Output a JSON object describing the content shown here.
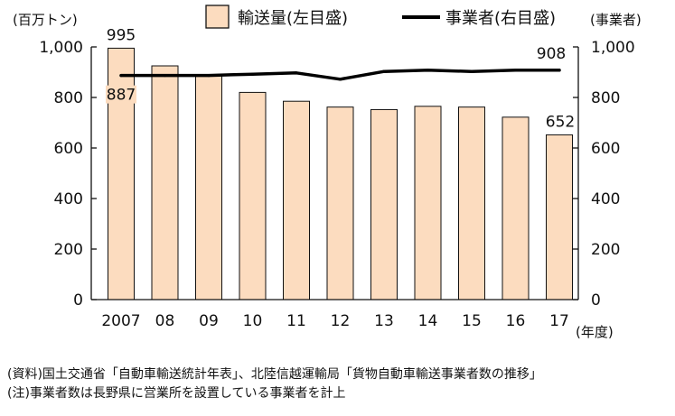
{
  "chart_data": {
    "type": "bar",
    "categories": [
      "2007",
      "08",
      "09",
      "10",
      "11",
      "12",
      "13",
      "14",
      "15",
      "16",
      "17"
    ],
    "x_unit_label": "(年度)",
    "series": [
      {
        "name": "輸送量(左目盛)",
        "type": "bar",
        "axis": "left",
        "values": [
          995,
          925,
          890,
          820,
          785,
          762,
          752,
          765,
          762,
          722,
          652
        ],
        "color": "#fcdcbf"
      },
      {
        "name": "事業者(右目盛)",
        "type": "line",
        "axis": "right",
        "values": [
          887,
          887,
          887,
          892,
          897,
          872,
          903,
          908,
          903,
          908,
          908
        ],
        "color": "#000000"
      }
    ],
    "left_axis": {
      "unit_label": "(百万トン)",
      "range": [
        0,
        1000
      ],
      "ticks": [
        "0",
        "200",
        "400",
        "600",
        "800",
        "1,000"
      ]
    },
    "right_axis": {
      "unit_label": "(事業者)",
      "range": [
        0,
        1000
      ],
      "ticks": [
        "0",
        "200",
        "400",
        "600",
        "800",
        "1,000"
      ]
    },
    "data_labels": [
      {
        "series": 0,
        "index": 0,
        "text": "995"
      },
      {
        "series": 1,
        "index": 0,
        "text": "887"
      },
      {
        "series": 0,
        "index": 10,
        "text": "652"
      },
      {
        "series": 1,
        "index": 10,
        "text": "908"
      }
    ],
    "legend_position": "top-center",
    "grid": false
  },
  "notes": [
    "(資料)国土交通省「自動車輸送統計年表」、北陸信越運輸局「貨物自動車輸送事業者数の推移」",
    "(注)事業者数は長野県に営業所を設置している事業者を計上"
  ]
}
